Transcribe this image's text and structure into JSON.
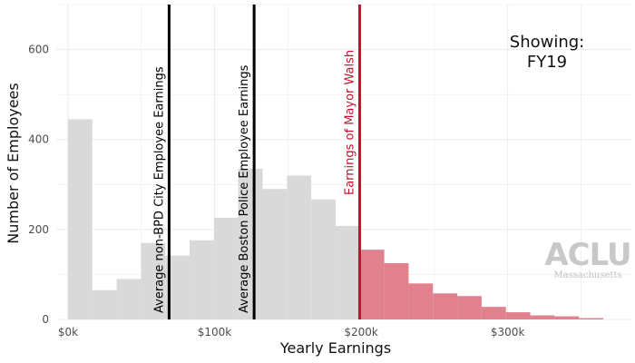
{
  "chart_data": {
    "type": "bar",
    "title": "",
    "xlabel": "Yearly Earnings",
    "ylabel": "Number of Employees",
    "x_range": [
      -8000,
      385000
    ],
    "y_range": [
      0,
      700
    ],
    "x_ticks": [
      {
        "value": 0,
        "label": "$0k"
      },
      {
        "value": 100000,
        "label": "$100k"
      },
      {
        "value": 200000,
        "label": "$200k"
      },
      {
        "value": 300000,
        "label": "$300k"
      }
    ],
    "y_ticks": [
      {
        "value": 0,
        "label": "0"
      },
      {
        "value": 200,
        "label": "200"
      },
      {
        "value": 400,
        "label": "400"
      },
      {
        "value": 600,
        "label": "600"
      }
    ],
    "bin_width": 16600,
    "bins": [
      {
        "start": 0,
        "count": 445
      },
      {
        "start": 16600,
        "count": 65
      },
      {
        "start": 33200,
        "count": 90
      },
      {
        "start": 49800,
        "count": 170
      },
      {
        "start": 66400,
        "count": 142
      },
      {
        "start": 83000,
        "count": 176
      },
      {
        "start": 99600,
        "count": 226
      },
      {
        "start": 116200,
        "count": 335
      },
      {
        "start": 132800,
        "count": 290
      },
      {
        "start": 149400,
        "count": 320
      },
      {
        "start": 166000,
        "count": 267
      },
      {
        "start": 182600,
        "count": 208
      },
      {
        "start": 199200,
        "count": 155
      },
      {
        "start": 215800,
        "count": 125
      },
      {
        "start": 232400,
        "count": 80
      },
      {
        "start": 249000,
        "count": 58
      },
      {
        "start": 265600,
        "count": 52
      },
      {
        "start": 282200,
        "count": 28
      },
      {
        "start": 298800,
        "count": 16
      },
      {
        "start": 315400,
        "count": 9
      },
      {
        "start": 332000,
        "count": 7
      },
      {
        "start": 348600,
        "count": 3
      }
    ],
    "highlight_threshold": 199000,
    "colors": {
      "bar_default": "#d9d9d9",
      "bar_highlight": "#e2818e",
      "reference_line": "#000000",
      "mayor_line": "#c8102e",
      "grid": "#ebebeb"
    },
    "reference_lines": [
      {
        "value": 69000,
        "label": "Average non-BPD City Employee Earnings",
        "color": "#000000"
      },
      {
        "value": 127000,
        "label": "Average Boston Police Employee Earnings",
        "color": "#000000"
      },
      {
        "value": 199000,
        "label": "Earnings of Mayor Walsh",
        "color": "#c8102e"
      }
    ],
    "state_label": [
      "Showing:",
      "FY19"
    ],
    "logo": {
      "main": "ACLU",
      "sub": "Massachusetts"
    }
  }
}
